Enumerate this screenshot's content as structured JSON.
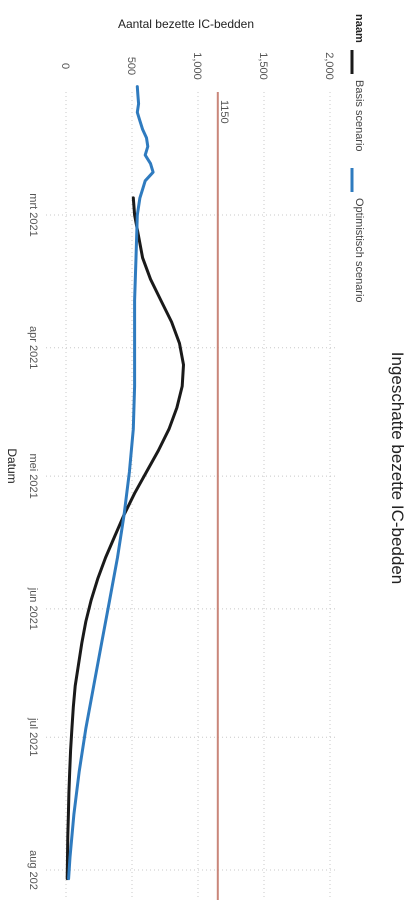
{
  "chart_data": {
    "type": "line",
    "orientation": "rotated 90° clockwise (x axis runs top to bottom, y axis runs right to left)",
    "title": "Ingeschatte bezette IC-bedden",
    "xlabel": "Datum",
    "ylabel": "Aantal bezette IC-bedden",
    "ylim": [
      0,
      2000
    ],
    "y_ticks": [
      "0",
      "500",
      "1,000",
      "1,500",
      "2,000"
    ],
    "x_ticks": [
      "mrt 2021",
      "apr 2021",
      "mei 2021",
      "jun 2021",
      "jul 2021",
      "aug 202"
    ],
    "grid": true,
    "legend": {
      "title": "naam",
      "placement": "top"
    },
    "reference_line": {
      "value": 1150,
      "label": "1150",
      "color": "#c9867a"
    },
    "series": [
      {
        "name": "Basis scenario",
        "color": "#1a1a1a",
        "x": [
          -4,
          0,
          5,
          10,
          15,
          20,
          25,
          30,
          35,
          40,
          45,
          50,
          55,
          60,
          65,
          70,
          75,
          80,
          85,
          90,
          95,
          100,
          105,
          110,
          115,
          120,
          125,
          130,
          135,
          140,
          145,
          150,
          155
        ],
        "y": [
          510,
          520,
          550,
          580,
          640,
          720,
          800,
          860,
          890,
          880,
          840,
          780,
          700,
          610,
          520,
          440,
          370,
          300,
          240,
          190,
          150,
          120,
          95,
          70,
          55,
          45,
          35,
          28,
          22,
          18,
          14,
          11,
          9
        ]
      },
      {
        "name": "Optimistisch scenario",
        "color": "#2f7bbf",
        "x": [
          -30,
          -28,
          -26,
          -24,
          -22,
          -20,
          -18,
          -16,
          -14,
          -12,
          -10,
          -8,
          -6,
          -4,
          0,
          10,
          20,
          30,
          40,
          50,
          60,
          70,
          80,
          90,
          100,
          110,
          120,
          130,
          140,
          150,
          155
        ],
        "y": [
          540,
          545,
          550,
          540,
          560,
          580,
          610,
          620,
          600,
          640,
          660,
          600,
          580,
          560,
          540,
          530,
          520,
          520,
          520,
          510,
          480,
          440,
          390,
          330,
          270,
          210,
          150,
          100,
          60,
          30,
          20
        ]
      }
    ]
  }
}
